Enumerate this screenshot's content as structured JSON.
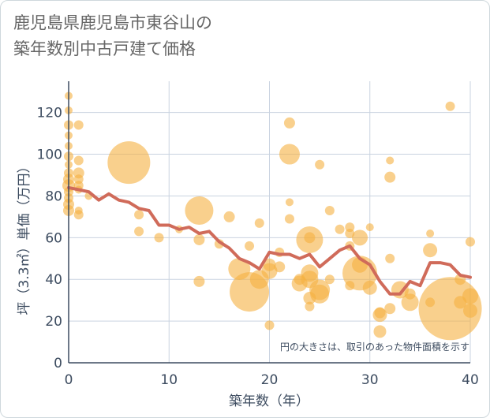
{
  "chart_data": {
    "type": "scatter",
    "title_line1": "鹿児島県鹿児島市東谷山の",
    "title_line2": "築年数別中古戸建て価格",
    "xlabel": "築年数（年）",
    "ylabel": "坪（3.3㎡）単価（万円）",
    "note": "円の大きさは、取引のあった物件面積を示す",
    "xlim": [
      0,
      40
    ],
    "ylim": [
      0,
      135
    ],
    "x_ticks": [
      "0",
      "10",
      "20",
      "30",
      "40"
    ],
    "y_ticks": [
      "0",
      "20",
      "40",
      "60",
      "80",
      "100",
      "120"
    ],
    "grid": true,
    "colors": {
      "bubble": "#f5b041",
      "line": "#d06b5a",
      "grid": "#c9d3e0",
      "text": "#3d4c60"
    },
    "series": [
      {
        "kind": "bubbles",
        "points": [
          [
            0,
            128,
            5
          ],
          [
            0,
            121,
            5
          ],
          [
            0,
            114,
            6
          ],
          [
            0,
            109,
            5
          ],
          [
            0,
            104,
            5
          ],
          [
            0,
            99,
            6
          ],
          [
            0,
            95,
            5
          ],
          [
            0,
            91,
            6
          ],
          [
            0,
            88,
            7
          ],
          [
            0,
            85,
            8
          ],
          [
            0,
            82,
            6
          ],
          [
            0,
            79,
            6
          ],
          [
            0,
            76,
            7
          ],
          [
            0,
            73,
            7
          ],
          [
            1,
            114,
            6
          ],
          [
            1,
            97,
            6
          ],
          [
            1,
            91,
            7
          ],
          [
            1,
            88,
            6
          ],
          [
            1,
            85,
            6
          ],
          [
            1,
            83,
            5
          ],
          [
            1,
            73,
            5
          ],
          [
            1,
            71,
            6
          ],
          [
            2,
            80,
            5
          ],
          [
            6,
            96,
            27
          ],
          [
            7,
            71,
            6
          ],
          [
            7,
            63,
            6
          ],
          [
            9,
            60,
            6
          ],
          [
            11,
            64,
            5
          ],
          [
            13,
            73,
            18
          ],
          [
            13,
            59,
            7
          ],
          [
            13,
            39,
            7
          ],
          [
            15,
            57,
            6
          ],
          [
            16,
            70,
            7
          ],
          [
            17,
            45,
            14
          ],
          [
            18,
            34,
            25
          ],
          [
            18,
            56,
            6
          ],
          [
            19,
            40,
            12
          ],
          [
            19,
            67,
            6
          ],
          [
            20,
            18,
            6
          ],
          [
            20,
            44,
            10
          ],
          [
            20,
            47,
            8
          ],
          [
            21,
            46,
            7
          ],
          [
            21,
            53,
            6
          ],
          [
            22,
            115,
            7
          ],
          [
            22,
            100,
            13
          ],
          [
            22,
            77,
            5
          ],
          [
            22,
            69,
            6
          ],
          [
            23,
            40,
            7
          ],
          [
            23,
            38,
            10
          ],
          [
            24,
            59,
            17
          ],
          [
            24,
            60,
            7
          ],
          [
            24,
            43,
            11
          ],
          [
            24,
            40,
            11
          ],
          [
            24,
            31,
            8
          ],
          [
            24,
            27,
            6
          ],
          [
            25,
            35,
            13
          ],
          [
            25,
            33,
            12
          ],
          [
            25,
            95,
            6
          ],
          [
            26,
            40,
            6
          ],
          [
            26,
            73,
            6
          ],
          [
            27,
            64,
            6
          ],
          [
            28,
            56,
            6
          ],
          [
            28,
            62,
            6
          ],
          [
            28,
            65,
            6
          ],
          [
            28,
            37,
            6
          ],
          [
            29,
            47,
            10
          ],
          [
            29,
            43,
            22
          ],
          [
            29,
            60,
            10
          ],
          [
            30,
            36,
            9
          ],
          [
            30,
            65,
            5
          ],
          [
            31,
            23,
            9
          ],
          [
            31,
            24,
            7
          ],
          [
            31,
            15,
            8
          ],
          [
            32,
            97,
            5
          ],
          [
            32,
            89,
            7
          ],
          [
            32,
            50,
            6
          ],
          [
            32,
            26,
            7
          ],
          [
            33,
            35,
            11
          ],
          [
            34,
            29,
            11
          ],
          [
            34,
            33,
            7
          ],
          [
            36,
            62,
            5
          ],
          [
            36,
            54,
            9
          ],
          [
            36,
            29,
            6
          ],
          [
            38,
            123,
            6
          ],
          [
            38,
            26,
            40
          ],
          [
            39,
            29,
            8
          ],
          [
            39,
            40,
            7
          ],
          [
            40,
            58,
            6
          ],
          [
            40,
            32,
            10
          ],
          [
            40,
            25,
            9
          ]
        ]
      },
      {
        "kind": "line",
        "name": "",
        "x": [
          0,
          1,
          2,
          3,
          4,
          5,
          6,
          7,
          8,
          9,
          10,
          11,
          12,
          13,
          14,
          15,
          16,
          17,
          18,
          19,
          20,
          21,
          22,
          23,
          24,
          25,
          26,
          27,
          28,
          29,
          30,
          31,
          32,
          33,
          34,
          35,
          36,
          37,
          38,
          39,
          40
        ],
        "y": [
          84,
          83,
          82,
          78,
          81,
          78,
          77,
          74,
          73,
          66,
          66,
          64,
          65,
          62,
          63,
          58,
          55,
          50,
          48,
          45,
          53,
          52,
          52,
          50,
          52,
          46,
          50,
          54,
          56,
          50,
          47,
          39,
          33,
          33,
          39,
          37,
          48,
          48,
          47,
          42,
          41
        ]
      }
    ]
  }
}
